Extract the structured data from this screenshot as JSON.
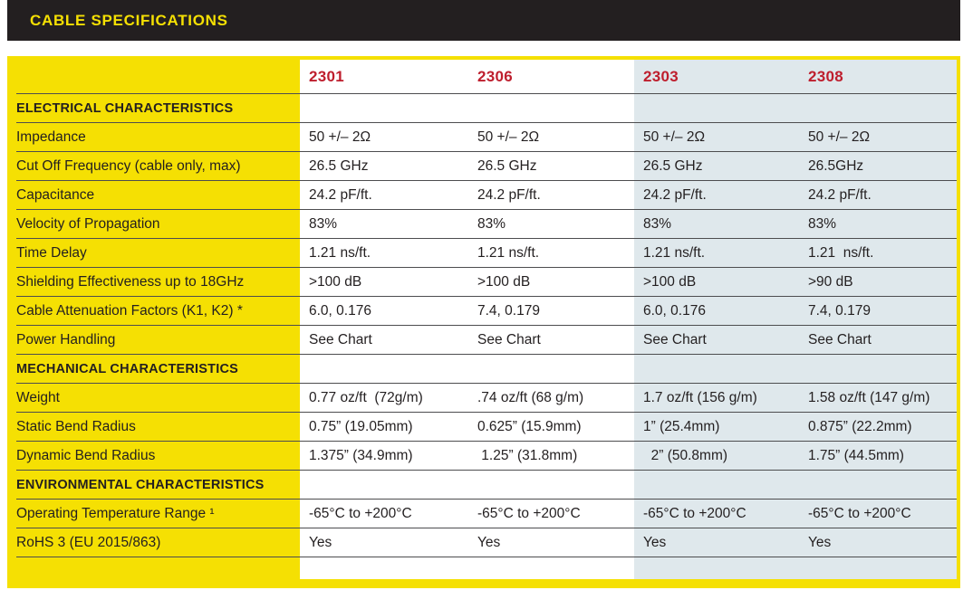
{
  "header": {
    "title": "CABLE SPECIFICATIONS"
  },
  "table": {
    "columns": [
      "2301",
      "2306",
      "2303",
      "2308"
    ],
    "rows": [
      {
        "type": "section",
        "label": "ELECTRICAL CHARACTERISTICS"
      },
      {
        "type": "data",
        "label": "Impedance",
        "values": [
          "50 +/– 2Ω",
          "50 +/– 2Ω",
          "50 +/– 2Ω",
          "50 +/– 2Ω"
        ]
      },
      {
        "type": "data",
        "label": "Cut Off Frequency (cable only, max)",
        "values": [
          "26.5 GHz",
          "26.5 GHz",
          "26.5 GHz",
          "26.5GHz"
        ]
      },
      {
        "type": "data",
        "label": "Capacitance",
        "values": [
          "24.2 pF/ft.",
          "24.2 pF/ft.",
          "24.2 pF/ft.",
          "24.2 pF/ft."
        ]
      },
      {
        "type": "data",
        "label": "Velocity of Propagation",
        "values": [
          "83%",
          "83%",
          "83%",
          "83%"
        ]
      },
      {
        "type": "data",
        "label": "Time Delay",
        "values": [
          "1.21 ns/ft.",
          "1.21 ns/ft.",
          "1.21 ns/ft.",
          "1.21  ns/ft."
        ]
      },
      {
        "type": "data",
        "label": "Shielding Effectiveness up to 18GHz",
        "values": [
          ">100 dB",
          ">100 dB",
          ">100 dB",
          ">90 dB"
        ]
      },
      {
        "type": "data",
        "label": "Cable Attenuation Factors (K1, K2) *",
        "values": [
          "6.0, 0.176",
          "7.4, 0.179",
          "6.0, 0.176",
          "7.4, 0.179"
        ]
      },
      {
        "type": "data",
        "label": "Power Handling",
        "values": [
          "See Chart",
          "See Chart",
          "See Chart",
          "See Chart"
        ]
      },
      {
        "type": "section",
        "label": "MECHANICAL CHARACTERISTICS"
      },
      {
        "type": "data",
        "label": "Weight",
        "values": [
          "0.77 oz/ft  (72g/m)",
          ".74 oz/ft (68 g/m)",
          "1.7 oz/ft (156 g/m)",
          "1.58 oz/ft (147 g/m)"
        ]
      },
      {
        "type": "data",
        "label": "Static Bend Radius",
        "values": [
          "0.75” (19.05mm)",
          "0.625” (15.9mm)",
          "1” (25.4mm)",
          "0.875” (22.2mm)"
        ]
      },
      {
        "type": "data",
        "label": "Dynamic Bend Radius",
        "values": [
          "1.375” (34.9mm)",
          " 1.25” (31.8mm)",
          "  2” (50.8mm)",
          "1.75” (44.5mm)"
        ]
      },
      {
        "type": "section",
        "label": "ENVIRONMENTAL CHARACTERISTICS"
      },
      {
        "type": "data",
        "label": "Operating Temperature Range ¹",
        "values": [
          "-65°C to +200°C",
          "-65°C to +200°C",
          "-65°C to +200°C",
          "-65°C to +200°C"
        ]
      },
      {
        "type": "data",
        "label": "RoHS 3 (EU 2015/863)",
        "values": [
          "Yes",
          "Yes",
          "Yes",
          "Yes"
        ]
      }
    ]
  },
  "colors": {
    "yellow": "#f5e003",
    "bar": "#231f20",
    "red": "#be1e2d",
    "blue": "#dfe8ec",
    "line": "#4d4d4f",
    "text": "#231f20"
  }
}
